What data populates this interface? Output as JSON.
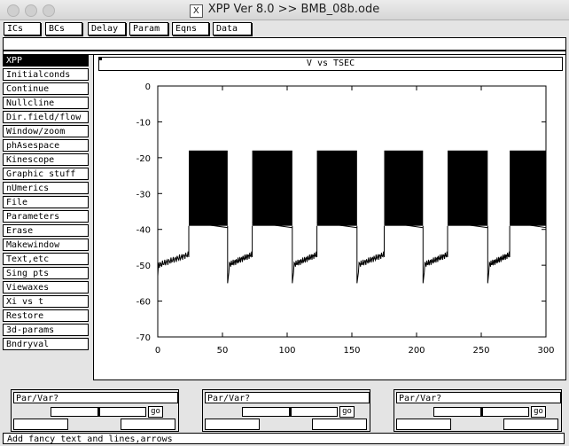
{
  "window": {
    "title": "XPP Ver 8.0 >> BMB_08b.ode",
    "x_icon": "X"
  },
  "toolbar": {
    "buttons": [
      "ICs",
      "BCs",
      "Delay",
      "Param",
      "Eqns",
      "Data"
    ]
  },
  "command_line": {
    "value": ""
  },
  "menu": {
    "items": [
      "XPP",
      "Initialconds",
      "Continue",
      "Nullcline",
      "Dir.field/flow",
      "Window/zoom",
      "phAsespace",
      "Kinescope",
      "Graphic stuff",
      "nUmerics",
      "File",
      "Parameters",
      "Erase",
      "Makewindow",
      "Text,etc",
      "Sing pts",
      "Viewaxes",
      "Xi vs t",
      "Restore",
      "3d-params",
      "Bndryval"
    ],
    "active": "XPP"
  },
  "graph": {
    "title": "V vs TSEC"
  },
  "chart_data": {
    "type": "line",
    "title": "V vs TSEC",
    "xlabel": "TSEC",
    "ylabel": "V",
    "xlim": [
      0,
      300
    ],
    "ylim": [
      -70,
      0
    ],
    "xticks": [
      0,
      50,
      100,
      150,
      200,
      250,
      300
    ],
    "yticks": [
      0,
      -10,
      -20,
      -30,
      -40,
      -50,
      -60,
      -70
    ],
    "grid": false,
    "line_color": "#000000",
    "bursts": [
      {
        "start": 24,
        "end": 54,
        "spike_top": -18,
        "spike_bottom": -39
      },
      {
        "start": 73,
        "end": 104,
        "spike_top": -18,
        "spike_bottom": -39
      },
      {
        "start": 123,
        "end": 154,
        "spike_top": -18,
        "spike_bottom": -39
      },
      {
        "start": 175,
        "end": 205,
        "spike_top": -18,
        "spike_bottom": -39
      },
      {
        "start": 224,
        "end": 255,
        "spike_top": -18,
        "spike_bottom": -39
      },
      {
        "start": 272,
        "end": 302,
        "spike_top": -18,
        "spike_bottom": -39
      }
    ],
    "silent_phase": {
      "onset_min": -55,
      "plateau": -50,
      "pre_burst": -47
    }
  },
  "param_panels": [
    {
      "label": "Par/Var?",
      "go": "go"
    },
    {
      "label": "Par/Var?",
      "go": "go"
    },
    {
      "label": "Par/Var?",
      "go": "go"
    }
  ],
  "status": {
    "text": "Add fancy text and lines,arrows"
  }
}
